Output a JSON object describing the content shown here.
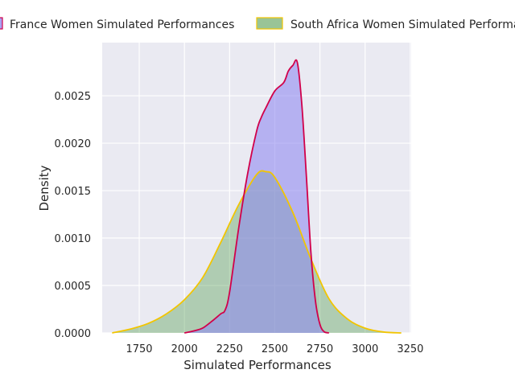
{
  "chart_data": {
    "type": "area",
    "title": "",
    "xlabel": "Simulated Performances",
    "ylabel": "Density",
    "xlim": [
      1545,
      3255
    ],
    "ylim": [
      0,
      0.00306
    ],
    "grid": true,
    "legend_placement": "top",
    "x_ticks": [
      {
        "value": 1750,
        "label": "1750"
      },
      {
        "value": 2000,
        "label": "2000"
      },
      {
        "value": 2250,
        "label": "2250"
      },
      {
        "value": 2500,
        "label": "2500"
      },
      {
        "value": 2750,
        "label": "2750"
      },
      {
        "value": 3000,
        "label": "3000"
      },
      {
        "value": 3250,
        "label": "3250"
      }
    ],
    "y_ticks": [
      {
        "value": 0.0,
        "label": "0.0000"
      },
      {
        "value": 0.0005,
        "label": "0.0005"
      },
      {
        "value": 0.001,
        "label": "0.0010"
      },
      {
        "value": 0.0015,
        "label": "0.0015"
      },
      {
        "value": 0.002,
        "label": "0.0020"
      },
      {
        "value": 0.0025,
        "label": "0.0025"
      }
    ],
    "series": [
      {
        "name": "France Women Simulated Performances",
        "line_color": "#d1004a",
        "fill_color": "#8f88f0",
        "fill_opacity": 0.58,
        "x": [
          2000,
          2050,
          2100,
          2150,
          2200,
          2225,
          2250,
          2300,
          2350,
          2400,
          2425,
          2450,
          2500,
          2550,
          2575,
          2600,
          2625,
          2650,
          2675,
          2700,
          2725,
          2750,
          2775,
          2800
        ],
        "y": [
          0.0,
          2e-05,
          5e-05,
          0.00012,
          0.0002,
          0.00024,
          0.00043,
          0.0011,
          0.00168,
          0.00213,
          0.00227,
          0.00237,
          0.00255,
          0.00264,
          0.00276,
          0.00282,
          0.00285,
          0.0024,
          0.00165,
          0.00085,
          0.00034,
          9e-05,
          1e-05,
          0.0
        ]
      },
      {
        "name": "South Africa Women Simulated Performances",
        "line_color": "#f2c500",
        "fill_color": "#4f9a4a",
        "fill_opacity": 0.38,
        "x": [
          1600,
          1700,
          1800,
          1900,
          2000,
          2100,
          2200,
          2300,
          2400,
          2450,
          2500,
          2600,
          2700,
          2800,
          2900,
          3000,
          3100,
          3200
        ],
        "y": [
          0.0,
          4e-05,
          0.0001,
          0.0002,
          0.00035,
          0.00058,
          0.00095,
          0.00135,
          0.00167,
          0.0017,
          0.00164,
          0.00127,
          0.00078,
          0.00036,
          0.00015,
          5e-05,
          1e-05,
          0.0
        ]
      }
    ]
  }
}
